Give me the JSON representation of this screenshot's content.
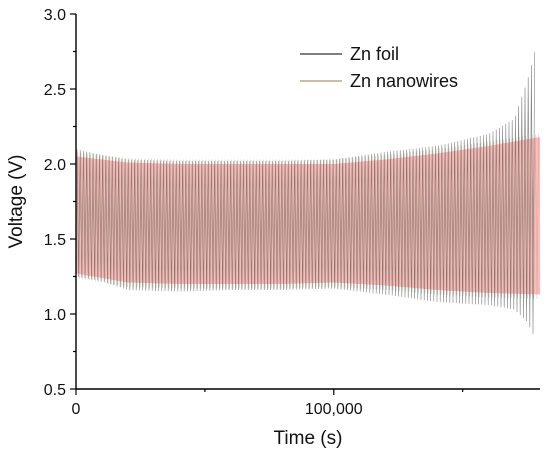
{
  "chart_data": {
    "type": "line",
    "xlabel": "Time (s)",
    "ylabel": "Voltage (V)",
    "xlim": [
      0,
      180000
    ],
    "ylim": [
      0.5,
      3.0
    ],
    "x_ticks": [
      0,
      100000
    ],
    "x_tick_labels": [
      "0",
      "100,000"
    ],
    "y_ticks": [
      0.5,
      1.0,
      1.5,
      2.0,
      2.5,
      3.0
    ],
    "y_tick_labels": [
      "0.5",
      "1.0",
      "1.5",
      "2.0",
      "2.5",
      "3.0"
    ],
    "grid": false,
    "legend": "top-right",
    "series": [
      {
        "name": "Zn foil",
        "color": "#555555",
        "style": "dense charge-discharge cycling",
        "upper_envelope": {
          "x": [
            0,
            10000,
            20000,
            40000,
            60000,
            80000,
            100000,
            120000,
            140000,
            160000,
            170000,
            175000,
            178000
          ],
          "y": [
            2.1,
            2.06,
            2.03,
            2.02,
            2.02,
            2.02,
            2.03,
            2.08,
            2.12,
            2.2,
            2.3,
            2.55,
            2.75
          ]
        },
        "lower_envelope": {
          "x": [
            0,
            10000,
            20000,
            40000,
            60000,
            80000,
            100000,
            120000,
            140000,
            160000,
            170000,
            175000,
            178000
          ],
          "y": [
            1.25,
            1.22,
            1.16,
            1.15,
            1.16,
            1.16,
            1.17,
            1.13,
            1.08,
            1.06,
            1.03,
            0.95,
            0.84
          ]
        }
      },
      {
        "name": "Zn nanowires",
        "color": "#b5a98a",
        "style": "dense charge-discharge cycling",
        "upper_envelope": {
          "x": [
            0,
            20000,
            40000,
            60000,
            80000,
            100000,
            120000,
            140000,
            160000,
            180000
          ],
          "y": [
            2.08,
            2.04,
            2.03,
            2.03,
            2.03,
            2.03,
            2.06,
            2.1,
            2.15,
            2.2
          ]
        },
        "lower_envelope": {
          "x": [
            0,
            20000,
            40000,
            60000,
            80000,
            100000,
            120000,
            140000,
            160000,
            180000
          ],
          "y": [
            1.24,
            1.18,
            1.17,
            1.17,
            1.17,
            1.18,
            1.16,
            1.13,
            1.11,
            1.1
          ]
        }
      }
    ],
    "fill_band": {
      "color": "#ffaaaa",
      "upper": {
        "x": [
          0,
          20000,
          40000,
          60000,
          80000,
          100000,
          120000,
          140000,
          160000,
          180000
        ],
        "y": [
          2.05,
          2.01,
          2.0,
          2.0,
          2.0,
          2.0,
          2.03,
          2.07,
          2.12,
          2.18
        ]
      },
      "lower": {
        "x": [
          0,
          20000,
          40000,
          60000,
          80000,
          100000,
          120000,
          140000,
          160000,
          180000
        ],
        "y": [
          1.27,
          1.21,
          1.2,
          1.2,
          1.2,
          1.21,
          1.19,
          1.16,
          1.14,
          1.13
        ]
      }
    }
  }
}
